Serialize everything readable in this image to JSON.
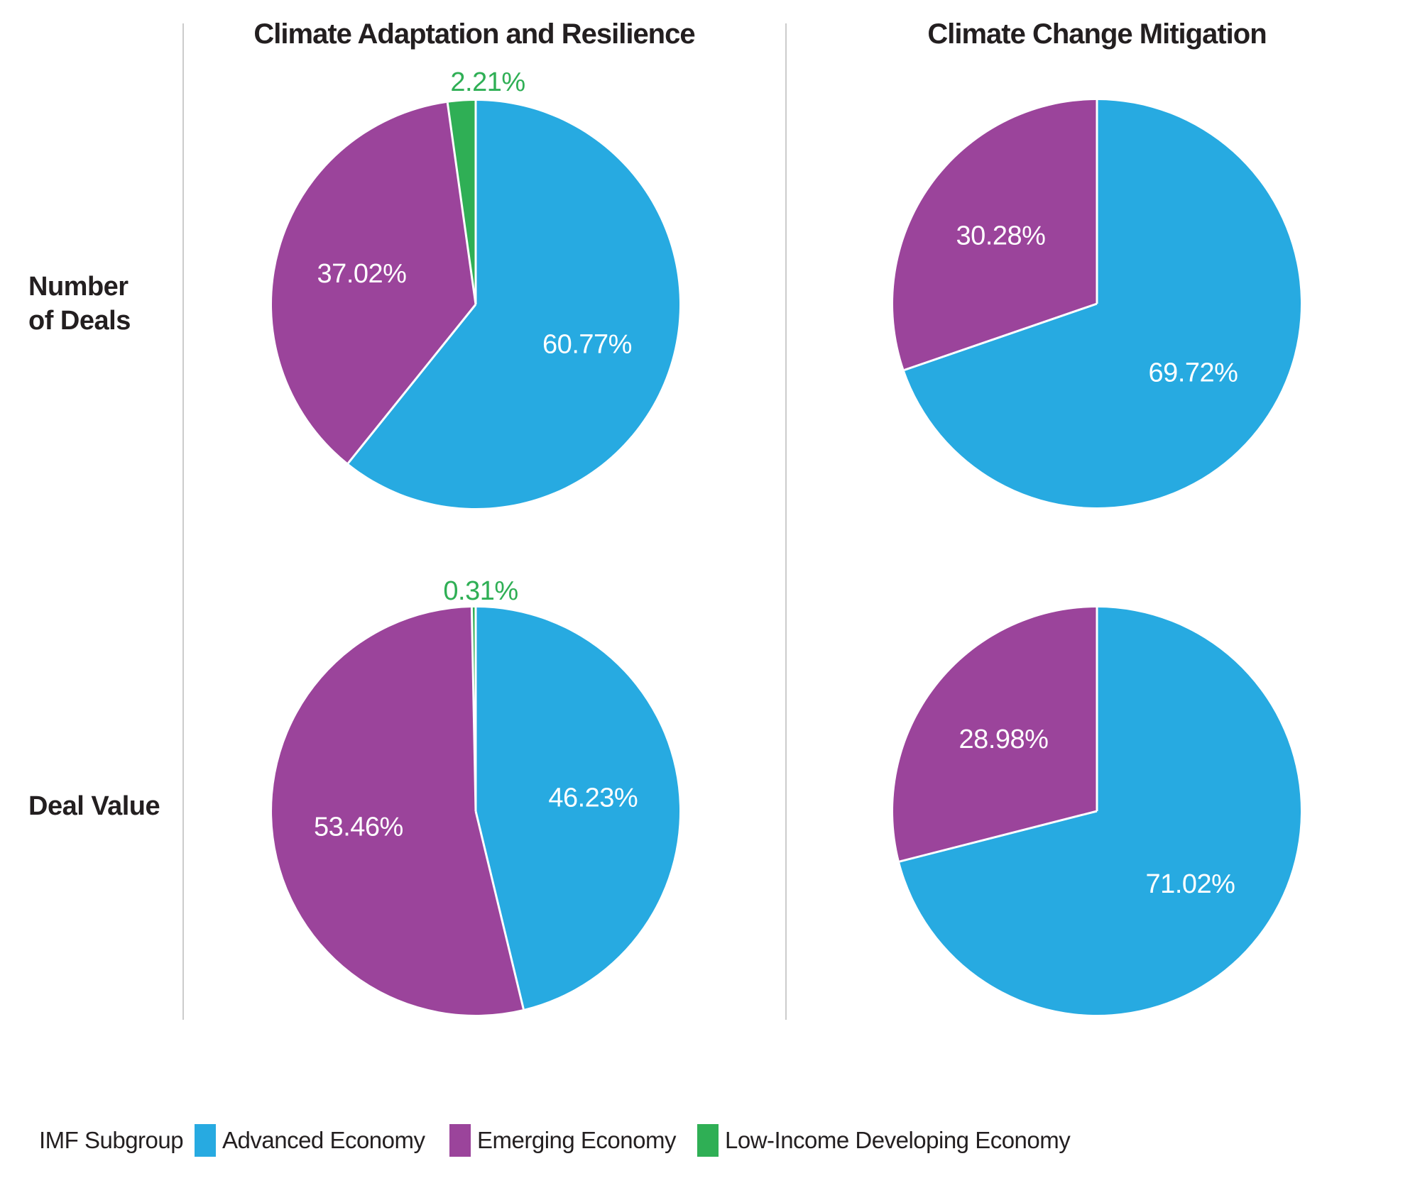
{
  "figure": {
    "columns": [
      {
        "title": "Climate Adaptation and Resilience"
      },
      {
        "title": "Climate Change Mitigation"
      }
    ],
    "rows": [
      {
        "label": "Number\nof Deals"
      },
      {
        "label": "Deal Value"
      }
    ]
  },
  "legend": {
    "title": "IMF Subgroup",
    "items": [
      {
        "label": "Advanced Economy",
        "color": "#27AAE1"
      },
      {
        "label": "Emerging Economy",
        "color": "#9B449B"
      },
      {
        "label": "Low-Income Developing Economy",
        "color": "#2FAF55"
      }
    ]
  },
  "colors": {
    "advanced_economy": "#27AAE1",
    "emerging_economy": "#9B449B",
    "low_income_developing_economy": "#2FAF55",
    "text": "#231F20",
    "divider": "#cccccc",
    "inside_label": "#ffffff"
  },
  "chart_data": [
    {
      "type": "pie",
      "column": "Climate Adaptation and Resilience",
      "row": "Number of Deals",
      "start_angle_deg": 0,
      "direction": "clockwise",
      "slices": [
        {
          "label": "Advanced Economy",
          "value": 60.77,
          "display": "60.77%",
          "color": "#27AAE1",
          "label_position": "inside"
        },
        {
          "label": "Emerging Economy",
          "value": 37.02,
          "display": "37.02%",
          "color": "#9B449B",
          "label_position": "inside"
        },
        {
          "label": "Low-Income Developing Economy",
          "value": 2.21,
          "display": "2.21%",
          "color": "#2FAF55",
          "label_position": "above"
        }
      ]
    },
    {
      "type": "pie",
      "column": "Climate Change Mitigation",
      "row": "Number of Deals",
      "start_angle_deg": 0,
      "direction": "clockwise",
      "slices": [
        {
          "label": "Advanced Economy",
          "value": 69.72,
          "display": "69.72%",
          "color": "#27AAE1",
          "label_position": "inside"
        },
        {
          "label": "Emerging Economy",
          "value": 30.28,
          "display": "30.28%",
          "color": "#9B449B",
          "label_position": "inside"
        }
      ]
    },
    {
      "type": "pie",
      "column": "Climate Adaptation and Resilience",
      "row": "Deal Value",
      "start_angle_deg": 0,
      "direction": "clockwise",
      "slices": [
        {
          "label": "Advanced Economy",
          "value": 46.23,
          "display": "46.23%",
          "color": "#27AAE1",
          "label_position": "inside"
        },
        {
          "label": "Emerging Economy",
          "value": 53.46,
          "display": "53.46%",
          "color": "#9B449B",
          "label_position": "inside"
        },
        {
          "label": "Low-Income Developing Economy",
          "value": 0.31,
          "display": "0.31%",
          "color": "#2FAF55",
          "label_position": "above"
        }
      ]
    },
    {
      "type": "pie",
      "column": "Climate Change Mitigation",
      "row": "Deal Value",
      "start_angle_deg": 0,
      "direction": "clockwise",
      "slices": [
        {
          "label": "Advanced Economy",
          "value": 71.02,
          "display": "71.02%",
          "color": "#27AAE1",
          "label_position": "inside"
        },
        {
          "label": "Emerging Economy",
          "value": 28.98,
          "display": "28.98%",
          "color": "#9B449B",
          "label_position": "inside"
        }
      ]
    }
  ]
}
